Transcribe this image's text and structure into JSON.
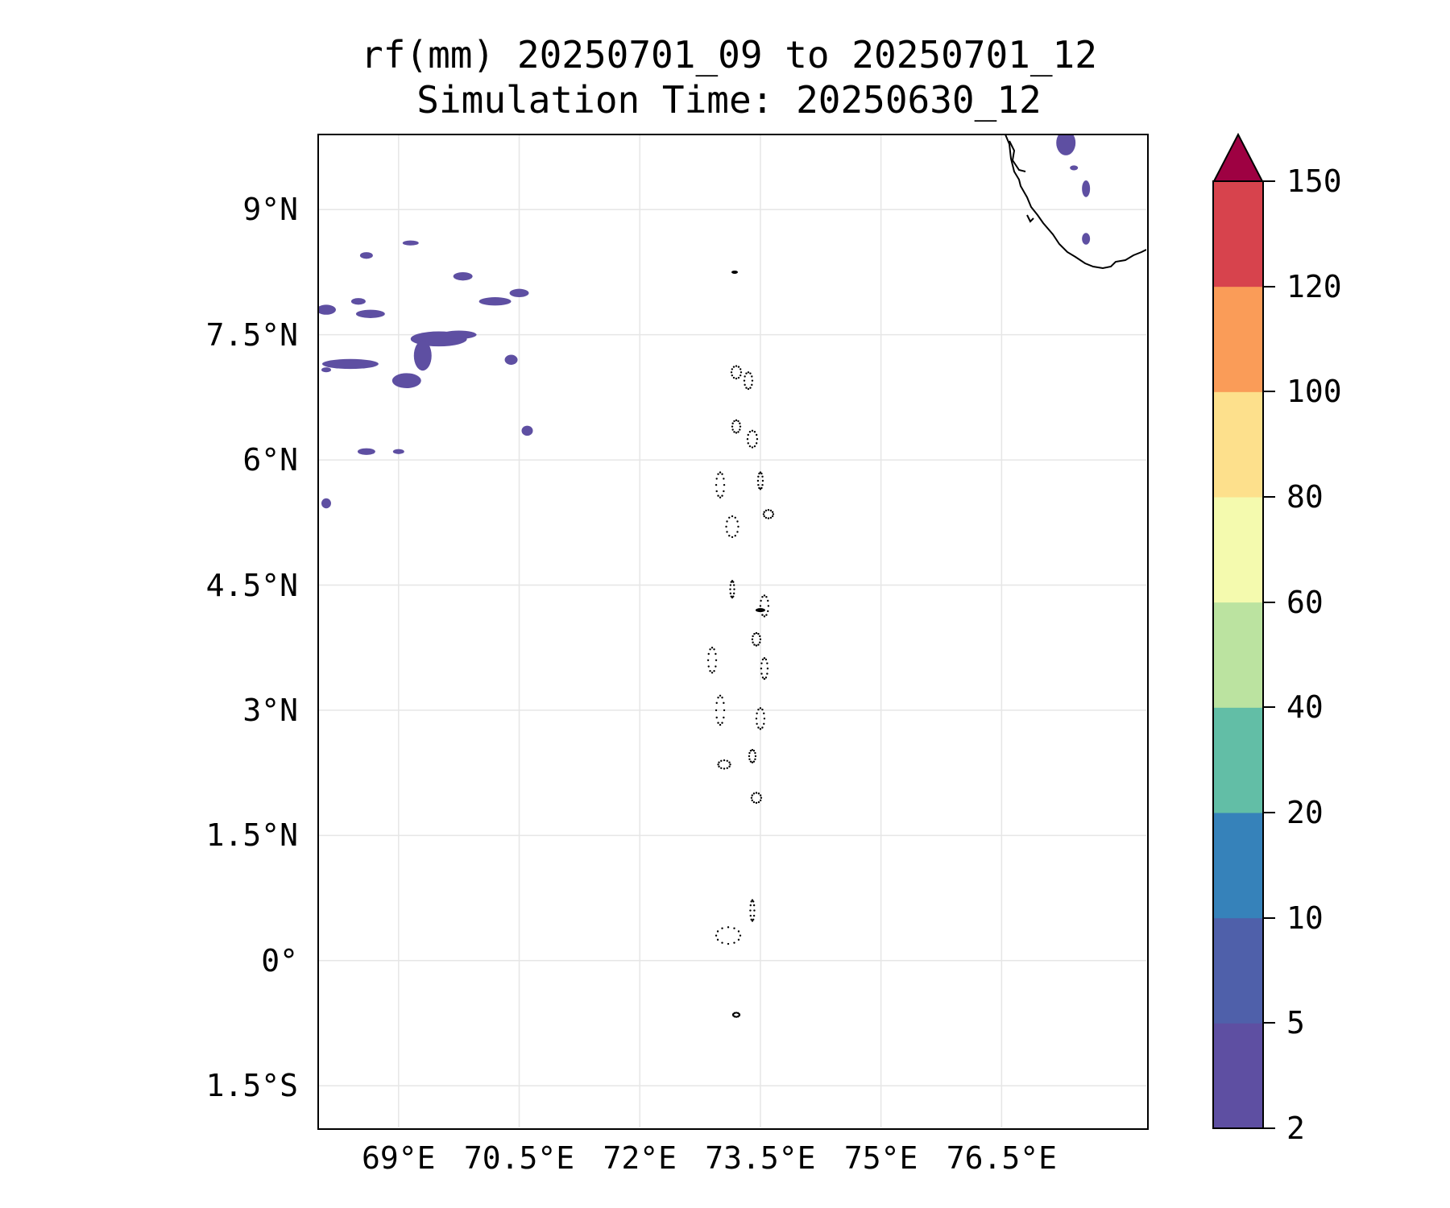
{
  "title": {
    "line1": "rf(mm) 20250701_09 to 20250701_12",
    "line2": "Simulation Time: 20250630_12"
  },
  "map": {
    "lon_range": [
      68.0,
      78.3
    ],
    "lat_range": [
      -2.0,
      9.9
    ],
    "projection": "PlateCarree",
    "gridlines": true,
    "coastline_color": "#000000",
    "lat_ticks": [
      {
        "value": 9.0,
        "label": "9°N"
      },
      {
        "value": 7.5,
        "label": "7.5°N"
      },
      {
        "value": 6.0,
        "label": "6°N"
      },
      {
        "value": 4.5,
        "label": "4.5°N"
      },
      {
        "value": 3.0,
        "label": "3°N"
      },
      {
        "value": 1.5,
        "label": "1.5°N"
      },
      {
        "value": 0.0,
        "label": "0°"
      },
      {
        "value": -1.5,
        "label": "1.5°S"
      }
    ],
    "lon_ticks": [
      {
        "value": 69.0,
        "label": "69°E"
      },
      {
        "value": 70.5,
        "label": "70.5°E"
      },
      {
        "value": 72.0,
        "label": "72°E"
      },
      {
        "value": 73.5,
        "label": "73.5°E"
      },
      {
        "value": 75.0,
        "label": "75°E"
      },
      {
        "value": 76.5,
        "label": "76.5°E"
      }
    ]
  },
  "colorbar": {
    "levels": [
      2,
      5,
      10,
      20,
      40,
      60,
      80,
      100,
      120,
      150
    ],
    "labels": [
      "2",
      "5",
      "10",
      "20",
      "40",
      "60",
      "80",
      "100",
      "120",
      "150"
    ],
    "colors": [
      "#5e4fa2",
      "#4f60aa",
      "#3682ba",
      "#62bea6",
      "#bbe3a0",
      "#f4faae",
      "#fde08c",
      "#fa9c58",
      "#d7434d"
    ],
    "extend_color": "#9e0142",
    "extend": "max"
  },
  "chart_data": {
    "type": "heatmap",
    "title": "rf(mm) 20250701_09 to 20250701_12",
    "subtitle": "Simulation Time: 20250630_12",
    "xlabel": "",
    "ylabel": "",
    "xlim": [
      68.0,
      78.3
    ],
    "ylim": [
      -2.0,
      9.9
    ],
    "rain_cells": [
      {
        "lon": 69.5,
        "lat": 7.45,
        "rx": 0.35,
        "ry": 0.09,
        "level": "2-5"
      },
      {
        "lon": 68.4,
        "lat": 7.15,
        "rx": 0.35,
        "ry": 0.06,
        "level": "2-5"
      },
      {
        "lon": 68.65,
        "lat": 7.75,
        "rx": 0.18,
        "ry": 0.05,
        "level": "2-5"
      },
      {
        "lon": 68.1,
        "lat": 7.8,
        "rx": 0.12,
        "ry": 0.06,
        "level": "2-5"
      },
      {
        "lon": 69.3,
        "lat": 7.25,
        "rx": 0.11,
        "ry": 0.18,
        "level": "2-5"
      },
      {
        "lon": 69.75,
        "lat": 7.5,
        "rx": 0.22,
        "ry": 0.05,
        "level": "2-5"
      },
      {
        "lon": 70.2,
        "lat": 7.9,
        "rx": 0.2,
        "ry": 0.05,
        "level": "2-5"
      },
      {
        "lon": 70.5,
        "lat": 8.0,
        "rx": 0.12,
        "ry": 0.05,
        "level": "2-5"
      },
      {
        "lon": 69.8,
        "lat": 8.2,
        "rx": 0.12,
        "ry": 0.05,
        "level": "2-5"
      },
      {
        "lon": 68.5,
        "lat": 7.9,
        "rx": 0.09,
        "ry": 0.04,
        "level": "2-5"
      },
      {
        "lon": 69.1,
        "lat": 6.95,
        "rx": 0.18,
        "ry": 0.09,
        "level": "2-5"
      },
      {
        "lon": 68.6,
        "lat": 6.1,
        "rx": 0.11,
        "ry": 0.04,
        "level": "2-5"
      },
      {
        "lon": 69.0,
        "lat": 6.1,
        "rx": 0.07,
        "ry": 0.03,
        "level": "2-5"
      },
      {
        "lon": 68.1,
        "lat": 5.48,
        "rx": 0.06,
        "ry": 0.06,
        "level": "2-5"
      },
      {
        "lon": 68.1,
        "lat": 7.08,
        "rx": 0.06,
        "ry": 0.03,
        "level": "2-5"
      },
      {
        "lon": 68.6,
        "lat": 8.45,
        "rx": 0.08,
        "ry": 0.04,
        "level": "2-5"
      },
      {
        "lon": 69.15,
        "lat": 8.6,
        "rx": 0.1,
        "ry": 0.03,
        "level": "2-5"
      },
      {
        "lon": 70.6,
        "lat": 6.35,
        "rx": 0.07,
        "ry": 0.06,
        "level": "2-5"
      },
      {
        "lon": 70.4,
        "lat": 7.2,
        "rx": 0.08,
        "ry": 0.06,
        "level": "2-5"
      },
      {
        "lon": 77.3,
        "lat": 9.8,
        "rx": 0.12,
        "ry": 0.15,
        "level": "2-5"
      },
      {
        "lon": 77.55,
        "lat": 9.25,
        "rx": 0.05,
        "ry": 0.1,
        "level": "2-5"
      },
      {
        "lon": 77.55,
        "lat": 8.65,
        "rx": 0.05,
        "ry": 0.07,
        "level": "2-5"
      },
      {
        "lon": 77.4,
        "lat": 9.5,
        "rx": 0.05,
        "ry": 0.03,
        "level": "2-5"
      }
    ]
  }
}
